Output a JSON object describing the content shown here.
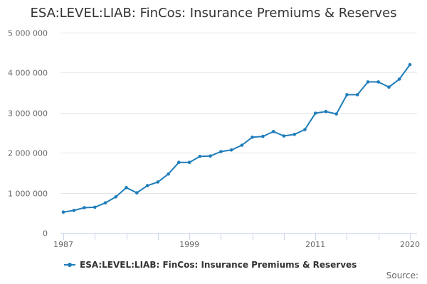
{
  "colors": {
    "series": "#1f7dba",
    "grid": "#e6e6e6",
    "axis": "#ccd6eb",
    "tick_text": "#666666"
  },
  "chart_data": {
    "type": "line",
    "title": "ESA:LEVEL:LIAB: FinCos: Insurance Premiums & Reserves",
    "xlabel": "",
    "ylabel": "",
    "xlim": [
      1987,
      2020
    ],
    "ylim": [
      0,
      5000000
    ],
    "y_ticks": [
      0,
      1000000,
      2000000,
      3000000,
      4000000,
      5000000
    ],
    "y_tick_labels": [
      "0",
      "1 000 000",
      "2 000 000",
      "3 000 000",
      "4 000 000",
      "5 000 000"
    ],
    "x_tick_labels": [
      {
        "value": 1987,
        "label": "1987"
      },
      {
        "value": 1999,
        "label": "1999"
      },
      {
        "value": 2011,
        "label": "2011"
      },
      {
        "value": 2020,
        "label": "2020"
      }
    ],
    "x_minor_ticks": [
      1987,
      1990,
      1993,
      1996,
      1999,
      2002,
      2005,
      2008,
      2011,
      2014,
      2017,
      2020
    ],
    "legend_position": "bottom",
    "grid": true,
    "series": [
      {
        "name": "ESA:LEVEL:LIAB: FinCos: Insurance Premiums & Reserves",
        "x": [
          1987,
          1988,
          1989,
          1990,
          1991,
          1992,
          1993,
          1994,
          1995,
          1996,
          1997,
          1998,
          1999,
          2000,
          2001,
          2002,
          2003,
          2004,
          2005,
          2006,
          2007,
          2008,
          2009,
          2010,
          2011,
          2012,
          2013,
          2014,
          2015,
          2016,
          2017,
          2018,
          2019,
          2020
        ],
        "values": [
          520000,
          560000,
          630000,
          640000,
          750000,
          900000,
          1130000,
          1000000,
          1180000,
          1270000,
          1470000,
          1760000,
          1760000,
          1910000,
          1920000,
          2030000,
          2070000,
          2190000,
          2390000,
          2410000,
          2530000,
          2420000,
          2460000,
          2580000,
          2990000,
          3030000,
          2970000,
          3450000,
          3450000,
          3770000,
          3770000,
          3640000,
          3840000,
          4200000
        ]
      }
    ]
  },
  "legend": {
    "label": "ESA:LEVEL:LIAB: FinCos: Insurance Premiums & Reserves"
  },
  "footer": {
    "source_label": "Source:"
  }
}
